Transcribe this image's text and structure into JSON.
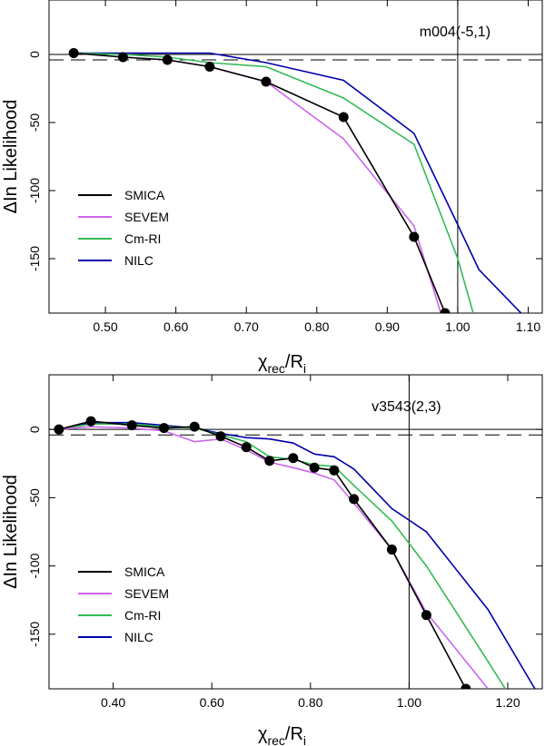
{
  "chart_data": [
    {
      "type": "line",
      "panel": "top",
      "annotation": "m004(-5,1)",
      "xlabel": "χ_rec/R_i",
      "xlabel_main": "χ",
      "xlabel_sub1": "rec",
      "xlabel_mid": "/R",
      "xlabel_sub2": "i",
      "ylabel": "ΔIn Likelihood",
      "xlim": [
        0.42,
        1.12
      ],
      "ylim": [
        -190,
        40
      ],
      "xticks": [
        0.5,
        0.6,
        0.7,
        0.8,
        0.9,
        1.0,
        1.1
      ],
      "xtick_labels": [
        "0.50",
        "0.60",
        "0.70",
        "0.80",
        "0.90",
        "1.00",
        "1.10"
      ],
      "yticks": [
        0,
        -50,
        -100,
        -150
      ],
      "ytick_labels": [
        "0",
        "-50",
        "-100",
        "-150"
      ],
      "hline_solid": 0,
      "hline_dashed": -4,
      "vline": 1.0,
      "legend_position": "lower-left",
      "series": [
        {
          "name": "SMICA",
          "color": "#000000",
          "markers": true,
          "x": [
            0.455,
            0.525,
            0.588,
            0.648,
            0.728,
            0.838,
            0.938,
            0.982
          ],
          "y": [
            1,
            -2,
            -4,
            -9,
            -20,
            -46,
            -134,
            -190
          ]
        },
        {
          "name": "SEVEM",
          "color": "#cc66ee",
          "markers": false,
          "x": [
            0.455,
            0.525,
            0.588,
            0.648,
            0.728,
            0.838,
            0.938,
            0.976
          ],
          "y": [
            1,
            -2,
            -4,
            -9,
            -20,
            -62,
            -126,
            -190
          ]
        },
        {
          "name": "Cm-RI",
          "color": "#33bb55",
          "markers": false,
          "x": [
            0.455,
            0.525,
            0.588,
            0.648,
            0.728,
            0.838,
            0.938,
            1.0,
            1.022
          ],
          "y": [
            1,
            0,
            -2,
            -6,
            -9,
            -32,
            -66,
            -150,
            -190
          ]
        },
        {
          "name": "NILC",
          "color": "#0000aa",
          "markers": false,
          "x": [
            0.455,
            0.525,
            0.588,
            0.648,
            0.728,
            0.838,
            0.938,
            1.0,
            1.03,
            1.09
          ],
          "y": [
            1,
            1,
            1,
            1,
            -6,
            -19,
            -58,
            -125,
            -158,
            -190
          ]
        }
      ]
    },
    {
      "type": "line",
      "panel": "bottom",
      "annotation": "v3543(2,3)",
      "xlabel": "χ_rec/R_i",
      "xlabel_main": "χ",
      "xlabel_sub1": "rec",
      "xlabel_mid": "/R",
      "xlabel_sub2": "i",
      "ylabel": "ΔIn Likelihood",
      "xlim": [
        0.27,
        1.27
      ],
      "ylim": [
        -190,
        40
      ],
      "xticks": [
        0.4,
        0.6,
        0.8,
        1.0,
        1.2
      ],
      "xtick_labels": [
        "0.40",
        "0.60",
        "0.80",
        "1.00",
        "1.20"
      ],
      "yticks": [
        0,
        -50,
        -100,
        -150
      ],
      "ytick_labels": [
        "0",
        "-50",
        "-100",
        "-150"
      ],
      "hline_solid": 0,
      "hline_dashed": -4,
      "vline": 1.0,
      "legend_position": "lower-left",
      "series": [
        {
          "name": "SMICA",
          "color": "#000000",
          "markers": true,
          "x": [
            0.29,
            0.355,
            0.438,
            0.503,
            0.565,
            0.618,
            0.67,
            0.717,
            0.765,
            0.808,
            0.848,
            0.888,
            0.965,
            1.035,
            1.115
          ],
          "y": [
            0,
            6,
            3,
            1,
            2,
            -5,
            -13,
            -23,
            -21,
            -28,
            -30,
            -51,
            -88,
            -136,
            -190
          ]
        },
        {
          "name": "SEVEM",
          "color": "#cc66ee",
          "markers": false,
          "x": [
            0.29,
            0.355,
            0.438,
            0.503,
            0.565,
            0.618,
            0.67,
            0.717,
            0.765,
            0.808,
            0.848,
            0.888,
            0.965,
            1.035,
            1.16
          ],
          "y": [
            0,
            2,
            1,
            -1,
            -9,
            -7,
            -15,
            -24,
            -28,
            -32,
            -37,
            -54,
            -88,
            -134,
            -190
          ]
        },
        {
          "name": "Cm-RI",
          "color": "#33bb55",
          "markers": false,
          "x": [
            0.29,
            0.355,
            0.438,
            0.503,
            0.565,
            0.618,
            0.67,
            0.717,
            0.765,
            0.808,
            0.848,
            0.888,
            0.965,
            1.035,
            1.16,
            1.195
          ],
          "y": [
            0,
            4,
            4,
            2,
            1,
            -4,
            -9,
            -20,
            -22,
            -26,
            -27,
            -41,
            -67,
            -100,
            -170,
            -190
          ]
        },
        {
          "name": "NILC",
          "color": "#0000aa",
          "markers": false,
          "x": [
            0.29,
            0.355,
            0.438,
            0.503,
            0.565,
            0.618,
            0.67,
            0.717,
            0.765,
            0.808,
            0.848,
            0.888,
            0.965,
            1.035,
            1.16,
            1.255
          ],
          "y": [
            0,
            5,
            5,
            3,
            1,
            -3,
            -6,
            -7,
            -10,
            -18,
            -20,
            -29,
            -58,
            -75,
            -132,
            -190
          ]
        }
      ]
    }
  ]
}
